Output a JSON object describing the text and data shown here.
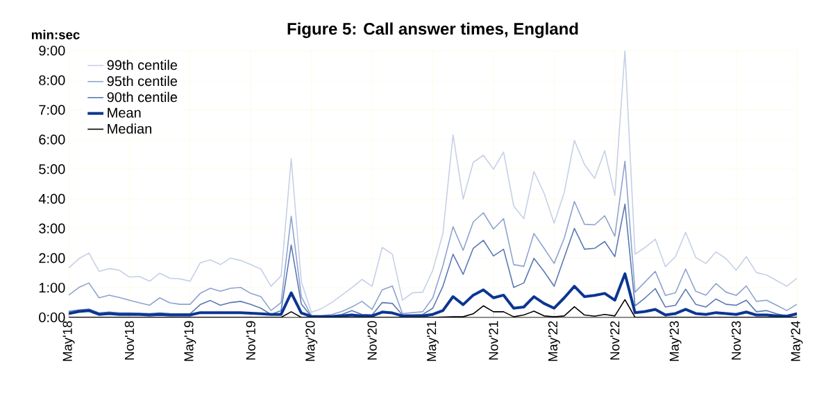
{
  "chart_data": {
    "type": "line",
    "title": "Figure 5: Call answer times, England",
    "ylabel": "min:sec",
    "categories": [
      "May'18",
      null,
      null,
      null,
      null,
      null,
      "Nov'18",
      null,
      null,
      null,
      null,
      null,
      "May'19",
      null,
      null,
      null,
      null,
      null,
      "Nov'19",
      null,
      null,
      null,
      null,
      null,
      "May'20",
      null,
      null,
      null,
      null,
      null,
      "Nov'20",
      null,
      null,
      null,
      null,
      null,
      "May'21",
      null,
      null,
      null,
      null,
      null,
      "Nov'21",
      null,
      null,
      null,
      null,
      null,
      "May'22",
      null,
      null,
      null,
      null,
      null,
      "Nov'22",
      null,
      null,
      null,
      null,
      null,
      "May'23",
      null,
      null,
      null,
      null,
      null,
      "Nov'23",
      null,
      null,
      null,
      null,
      null,
      "May'24"
    ],
    "ylim": [
      0,
      9
    ],
    "yticks": [
      {
        "value": 0,
        "label": "0:00"
      },
      {
        "value": 1,
        "label": "1:00"
      },
      {
        "value": 2,
        "label": "2:00"
      },
      {
        "value": 3,
        "label": "3:00"
      },
      {
        "value": 4,
        "label": "4:00"
      },
      {
        "value": 5,
        "label": "5:00"
      },
      {
        "value": 6,
        "label": "6:00"
      },
      {
        "value": 7,
        "label": "7:00"
      },
      {
        "value": 8,
        "label": "8:00"
      },
      {
        "value": 9,
        "label": "9:00"
      }
    ],
    "grid": true,
    "legend": "top left",
    "series": [
      {
        "name": "99th centile",
        "color": "#c5d0e6",
        "values": [
          1.67,
          1.98,
          2.17,
          1.55,
          1.65,
          1.59,
          1.36,
          1.38,
          1.22,
          1.49,
          1.32,
          1.3,
          1.22,
          1.84,
          1.94,
          1.78,
          2.0,
          1.92,
          1.78,
          1.63,
          1.05,
          1.4,
          5.35,
          1.2,
          0.17,
          0.3,
          0.5,
          0.75,
          1.0,
          1.28,
          1.05,
          2.36,
          2.13,
          0.58,
          0.83,
          0.85,
          1.59,
          2.83,
          6.16,
          3.99,
          5.23,
          5.47,
          5.0,
          5.58,
          3.76,
          3.33,
          4.92,
          4.19,
          3.18,
          4.22,
          5.97,
          5.16,
          4.69,
          5.62,
          4.11,
          9.0,
          2.13,
          2.36,
          2.64,
          1.71,
          2.05,
          2.87,
          2.02,
          1.82,
          2.21,
          1.98,
          1.59,
          2.05,
          1.51,
          1.43,
          1.24,
          1.05,
          1.32
        ]
      },
      {
        "name": "95th centile",
        "color": "#8da3cf",
        "values": [
          0.75,
          1.01,
          1.16,
          0.66,
          0.75,
          0.67,
          0.58,
          0.49,
          0.41,
          0.66,
          0.49,
          0.44,
          0.44,
          0.81,
          0.98,
          0.88,
          0.98,
          1.01,
          0.81,
          0.7,
          0.23,
          0.5,
          3.41,
          0.7,
          0.05,
          0.05,
          0.1,
          0.2,
          0.35,
          0.54,
          0.27,
          0.93,
          1.06,
          0.13,
          0.16,
          0.19,
          0.66,
          1.74,
          3.06,
          2.26,
          3.22,
          3.53,
          2.98,
          3.33,
          1.78,
          1.72,
          2.83,
          2.33,
          1.82,
          2.67,
          3.91,
          3.14,
          3.12,
          3.43,
          2.74,
          5.27,
          0.85,
          1.2,
          1.55,
          0.74,
          0.83,
          1.63,
          0.88,
          0.75,
          1.14,
          0.85,
          0.74,
          1.06,
          0.54,
          0.58,
          0.41,
          0.23,
          0.44
        ]
      },
      {
        "name": "90th centile",
        "color": "#5a78b4",
        "values": [
          0.2,
          0.25,
          0.28,
          0.15,
          0.18,
          0.15,
          0.15,
          0.14,
          0.13,
          0.15,
          0.13,
          0.12,
          0.12,
          0.43,
          0.57,
          0.41,
          0.5,
          0.54,
          0.44,
          0.31,
          0.1,
          0.23,
          2.44,
          0.45,
          0.03,
          0.03,
          0.05,
          0.1,
          0.23,
          0.1,
          0.08,
          0.5,
          0.47,
          0.08,
          0.08,
          0.1,
          0.31,
          1.05,
          2.13,
          1.45,
          2.33,
          2.6,
          2.07,
          2.3,
          1.01,
          1.16,
          1.99,
          1.55,
          1.05,
          2.02,
          3.0,
          2.3,
          2.33,
          2.56,
          2.05,
          3.82,
          0.39,
          0.66,
          0.97,
          0.35,
          0.41,
          0.95,
          0.44,
          0.35,
          0.62,
          0.44,
          0.41,
          0.58,
          0.19,
          0.23,
          0.12,
          0.05,
          0.16
        ]
      },
      {
        "name": "Mean",
        "color": "#0b3592",
        "values": [
          0.13,
          0.2,
          0.23,
          0.1,
          0.13,
          0.1,
          0.1,
          0.1,
          0.08,
          0.1,
          0.08,
          0.08,
          0.08,
          0.16,
          0.16,
          0.16,
          0.16,
          0.16,
          0.14,
          0.12,
          0.1,
          0.1,
          0.83,
          0.15,
          0.03,
          0.03,
          0.03,
          0.05,
          0.08,
          0.05,
          0.05,
          0.18,
          0.15,
          0.05,
          0.05,
          0.05,
          0.1,
          0.23,
          0.7,
          0.43,
          0.75,
          0.93,
          0.66,
          0.75,
          0.31,
          0.35,
          0.7,
          0.47,
          0.31,
          0.66,
          1.05,
          0.7,
          0.74,
          0.81,
          0.58,
          1.47,
          0.16,
          0.2,
          0.27,
          0.08,
          0.13,
          0.27,
          0.13,
          0.1,
          0.16,
          0.13,
          0.1,
          0.18,
          0.08,
          0.08,
          0.05,
          0.04,
          0.12
        ]
      },
      {
        "name": "Median",
        "color": "#000000",
        "values": [
          0,
          0,
          0,
          0,
          0,
          0,
          0,
          0,
          0,
          0,
          0,
          0,
          0,
          0,
          0,
          0,
          0,
          0,
          0,
          0,
          0,
          0,
          0.19,
          0,
          0,
          0,
          0,
          0,
          0,
          0,
          0,
          0,
          0,
          0,
          0,
          0,
          0,
          0.01,
          0.02,
          0.02,
          0.12,
          0.39,
          0.19,
          0.19,
          0.02,
          0.08,
          0.21,
          0.05,
          0.02,
          0.05,
          0.36,
          0.08,
          0.04,
          0.1,
          0.05,
          0.6,
          0,
          0,
          0,
          0,
          0,
          0,
          0,
          0,
          0,
          0,
          0,
          0,
          0,
          0,
          0,
          0,
          0
        ]
      }
    ]
  }
}
